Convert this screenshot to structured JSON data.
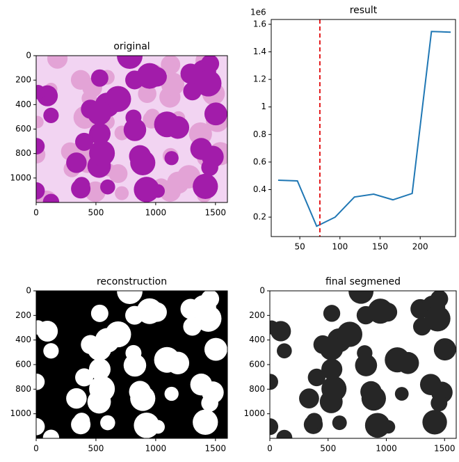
{
  "chart_data": [
    {
      "type": "image",
      "title": "original",
      "xlim": [
        0,
        1600
      ],
      "ylim": [
        1200,
        0
      ],
      "xticks": [
        0,
        500,
        1000,
        1500
      ],
      "yticks": [
        0,
        200,
        400,
        600,
        800,
        1000
      ],
      "colors": {
        "background": "#f2d4f2",
        "cells": "#a21caa",
        "faint": "#e3a3d6"
      }
    },
    {
      "type": "line",
      "title": "result",
      "y_offset_label": "1e6",
      "x": [
        23,
        47,
        71,
        94,
        118,
        142,
        166,
        190,
        214,
        238
      ],
      "values": [
        0.468,
        0.463,
        0.134,
        0.2,
        0.346,
        0.367,
        0.326,
        0.372,
        1.548,
        1.543
      ],
      "color": "#1f77b4",
      "vline": {
        "x": 75,
        "color": "#e31a1c"
      },
      "xlim": [
        14.4,
        244
      ],
      "ylim": [
        0.059,
        1.635
      ],
      "xticks": [
        50,
        100,
        150,
        200
      ],
      "yticks": [
        0.2,
        0.4,
        0.6,
        0.8,
        1.0,
        1.2,
        1.4,
        1.6
      ]
    },
    {
      "type": "image",
      "title": "reconstruction",
      "xlim": [
        0,
        1600
      ],
      "ylim": [
        1200,
        0
      ],
      "xticks": [
        0,
        500,
        1000,
        1500
      ],
      "yticks": [
        0,
        200,
        400,
        600,
        800,
        1000
      ],
      "colors": {
        "background": "#000000",
        "cells": "#ffffff"
      }
    },
    {
      "type": "image",
      "title": "final segmened",
      "xlim": [
        0,
        1600
      ],
      "ylim": [
        1200,
        0
      ],
      "xticks": [
        0,
        500,
        1000,
        1500
      ],
      "yticks": [
        0,
        200,
        400,
        600,
        800,
        1000
      ],
      "colors": {
        "background": "#ffffff",
        "cells": "#262626"
      }
    }
  ]
}
